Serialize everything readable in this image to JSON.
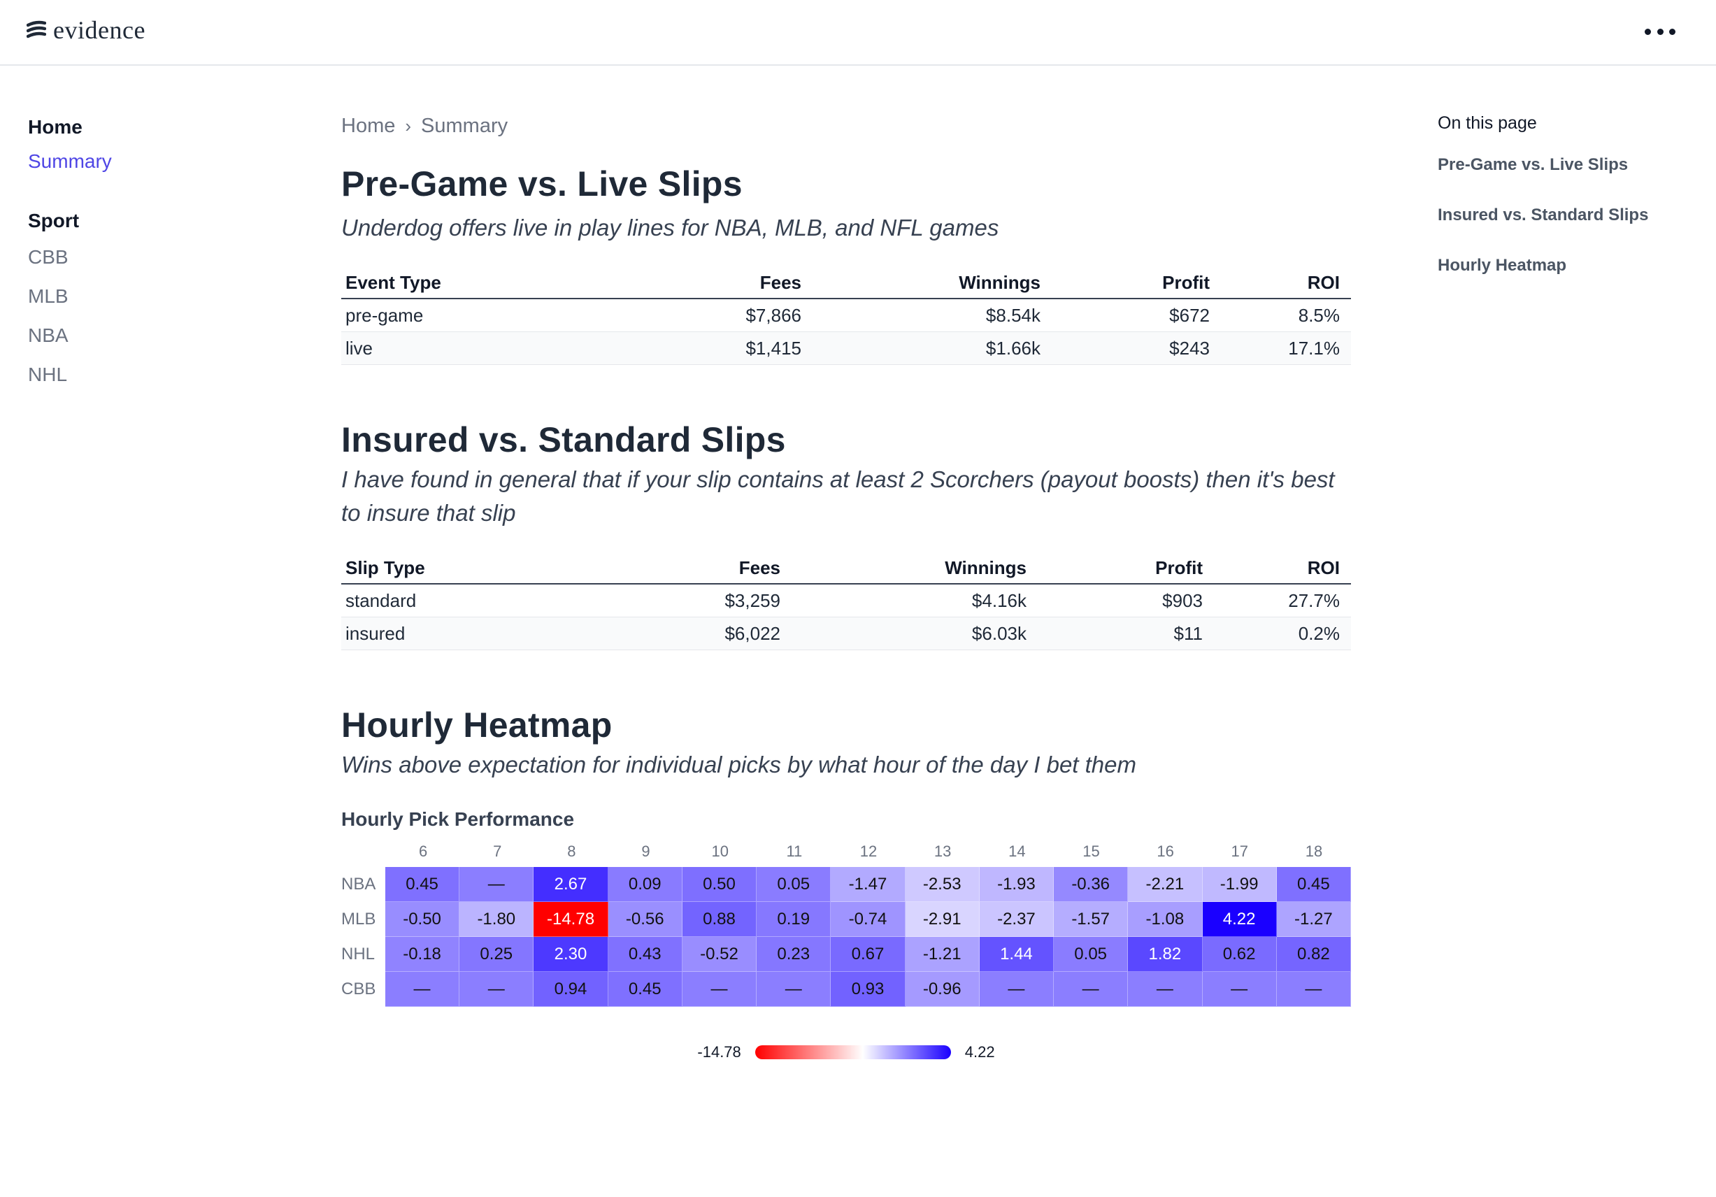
{
  "header": {
    "logo_text": "evidence",
    "menu_icon": "ellipsis-icon"
  },
  "sidebar": {
    "home_label": "Home",
    "summary_label": "Summary",
    "sport_label": "Sport",
    "items": [
      "CBB",
      "MLB",
      "NBA",
      "NHL"
    ]
  },
  "breadcrumb": [
    "Home",
    "Summary"
  ],
  "toc": {
    "title": "On this page",
    "items": [
      "Pre-Game vs. Live Slips",
      "Insured vs. Standard Slips",
      "Hourly Heatmap"
    ]
  },
  "section1": {
    "title": "Pre-Game vs. Live Slips",
    "subtitle": "Underdog offers live in play lines for NBA, MLB, and NFL games",
    "columns": [
      "Event Type",
      "Fees",
      "Winnings",
      "Profit",
      "ROI"
    ],
    "rows": [
      [
        "pre-game",
        "$7,866",
        "$8.54k",
        "$672",
        "8.5%"
      ],
      [
        "live",
        "$1,415",
        "$1.66k",
        "$243",
        "17.1%"
      ]
    ]
  },
  "section2": {
    "title": "Insured vs. Standard Slips",
    "subtitle": "I have found in general that if your slip contains at least 2 Scorchers (payout boosts) then it's best to insure that slip",
    "columns": [
      "Slip Type",
      "Fees",
      "Winnings",
      "Profit",
      "ROI"
    ],
    "rows": [
      [
        "standard",
        "$3,259",
        "$4.16k",
        "$903",
        "27.7%"
      ],
      [
        "insured",
        "$6,022",
        "$6.03k",
        "$11",
        "0.2%"
      ]
    ]
  },
  "section3": {
    "title": "Hourly Heatmap",
    "subtitle": "Wins above expectation for individual picks by what hour of the day I bet them",
    "chart_title": "Hourly Pick Performance"
  },
  "chart_data": {
    "type": "heatmap",
    "title": "Hourly Pick Performance",
    "x": [
      "6",
      "7",
      "8",
      "9",
      "10",
      "11",
      "12",
      "13",
      "14",
      "15",
      "16",
      "17",
      "18"
    ],
    "y": [
      "NBA",
      "MLB",
      "NHL",
      "CBB"
    ],
    "values": [
      [
        0.45,
        null,
        2.67,
        0.09,
        0.5,
        0.05,
        -1.47,
        -2.53,
        -1.93,
        -0.36,
        -2.21,
        -1.99,
        0.45
      ],
      [
        -0.5,
        -1.8,
        -14.78,
        -0.56,
        0.88,
        0.19,
        -0.74,
        -2.91,
        -2.37,
        -1.57,
        -1.08,
        4.22,
        -1.27
      ],
      [
        -0.18,
        0.25,
        2.3,
        0.43,
        -0.52,
        0.23,
        0.67,
        -1.21,
        1.44,
        0.05,
        1.82,
        0.62,
        0.82
      ],
      [
        null,
        null,
        0.94,
        0.45,
        null,
        null,
        0.93,
        -0.96,
        null,
        null,
        null,
        null,
        null
      ]
    ],
    "null_label": "—",
    "legend": {
      "min": -14.78,
      "max": 4.22,
      "min_label": "-14.78",
      "max_label": "4.22",
      "min_color": "#ff0000",
      "mid_color": "#ffffff",
      "max_color": "#1a00ff"
    }
  }
}
